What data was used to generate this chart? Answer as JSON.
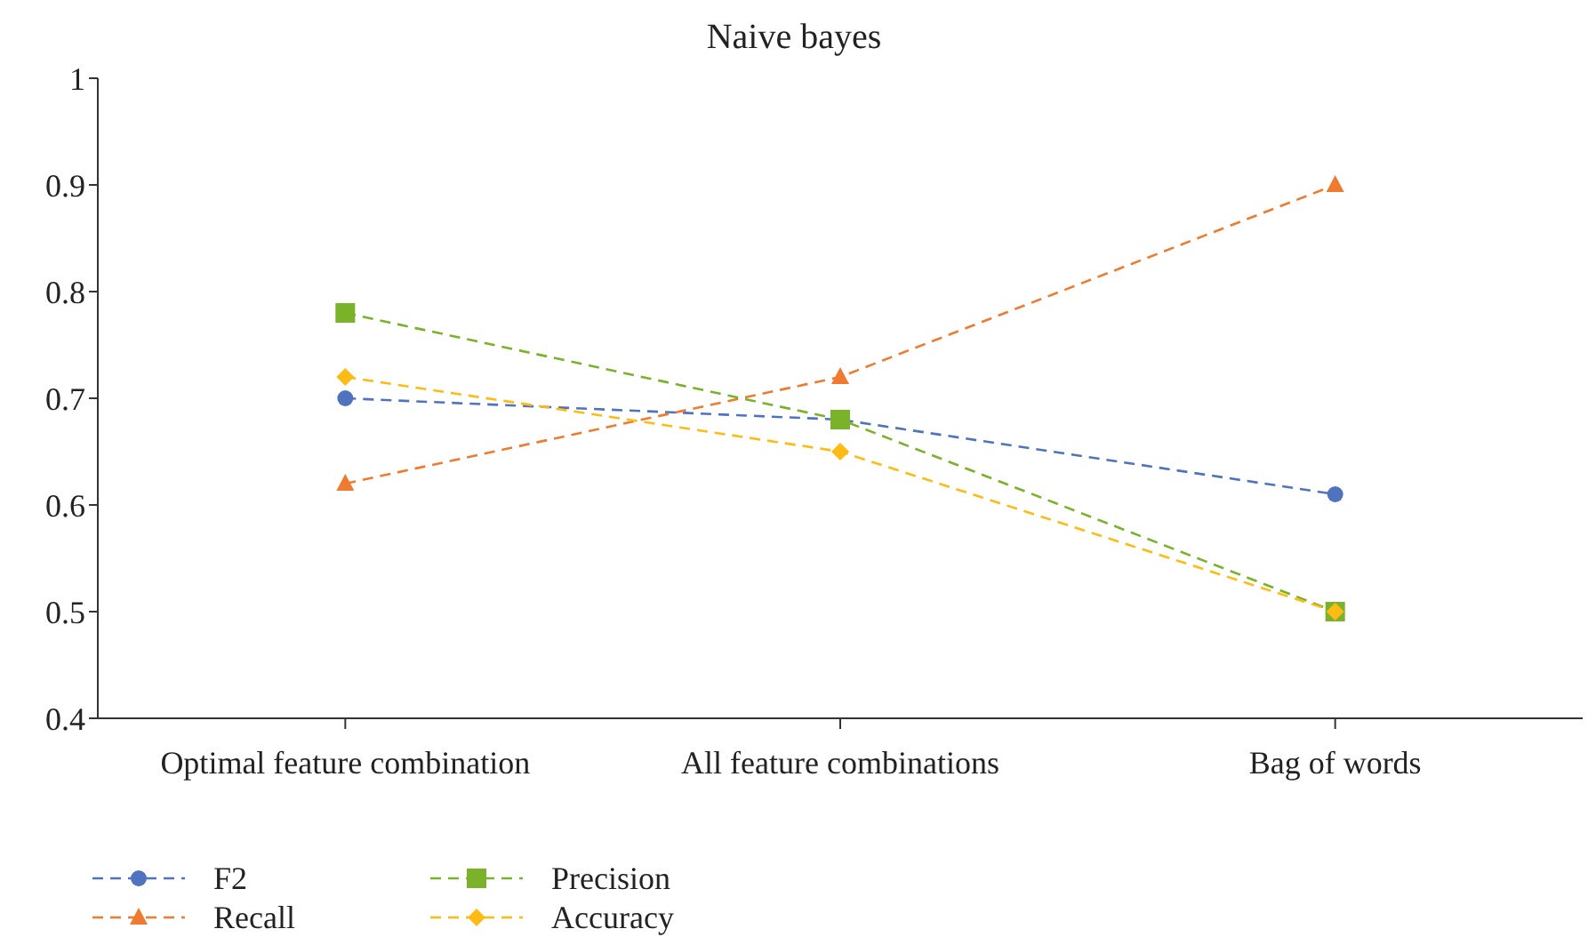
{
  "chart_data": {
    "type": "line",
    "title": "Naive bayes",
    "categories": [
      "Optimal feature combination",
      "All feature combinations",
      "Bag of words"
    ],
    "series": [
      {
        "name": "F2",
        "color": "#4f73be",
        "values": [
          0.7,
          0.68,
          0.61
        ],
        "marker": "circle"
      },
      {
        "name": "Recall",
        "color": "#ee7b2f",
        "values": [
          0.62,
          0.72,
          0.9
        ],
        "marker": "triangle"
      },
      {
        "name": "Precision",
        "color": "#7ab22a",
        "values": [
          0.78,
          0.68,
          0.5
        ],
        "marker": "square"
      },
      {
        "name": "Accuracy",
        "color": "#fdbb13",
        "values": [
          0.72,
          0.65,
          0.5
        ],
        "marker": "diamond"
      }
    ],
    "ylim": [
      0.4,
      1
    ],
    "yticks": [
      0.4,
      0.5,
      0.6,
      0.7,
      0.8,
      0.9,
      {
        "value": 1,
        "label": "1"
      }
    ],
    "legend": "bottom left",
    "line_style": "dashed"
  }
}
